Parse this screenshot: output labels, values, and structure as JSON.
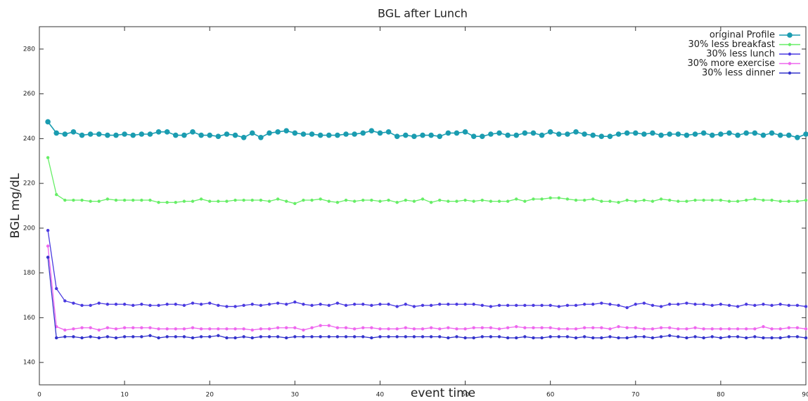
{
  "chart_data": {
    "type": "line",
    "title": "BGL after Lunch",
    "x_label": "event time",
    "y_label": "BGL mg/dL",
    "x": [
      1,
      2,
      3,
      4,
      5,
      6,
      7,
      8,
      9,
      10,
      11,
      12,
      13,
      14,
      15,
      16,
      17,
      18,
      19,
      20,
      21,
      22,
      23,
      24,
      25,
      26,
      27,
      28,
      29,
      30,
      31,
      32,
      33,
      34,
      35,
      36,
      37,
      38,
      39,
      40,
      41,
      42,
      43,
      44,
      45,
      46,
      47,
      48,
      49,
      50,
      51,
      52,
      53,
      54,
      55,
      56,
      57,
      58,
      59,
      60,
      61,
      62,
      63,
      64,
      65,
      66,
      67,
      68,
      69,
      70,
      71,
      72,
      73,
      74,
      75,
      76,
      77,
      78,
      79,
      80,
      81,
      82,
      83,
      84,
      85,
      86,
      87,
      88,
      89,
      90
    ],
    "series": [
      {
        "name": "original Profile",
        "color": "#1a9cb0",
        "values": [
          247.5,
          242.5,
          242,
          243,
          241.5,
          242,
          242,
          241.5,
          241.5,
          242,
          241.5,
          242,
          242,
          243,
          243,
          241.5,
          241.5,
          243,
          241.5,
          241.5,
          241,
          242,
          241.5,
          240.5,
          242.5,
          240.5,
          242.5,
          243,
          243.5,
          242.5,
          242,
          242,
          241.5,
          241.5,
          241.5,
          242,
          242,
          242.5,
          243.5,
          242.5,
          243,
          241,
          241.5,
          241,
          241.5,
          241.5,
          241,
          242.5,
          242.5,
          243,
          241,
          241,
          242,
          242.5,
          241.5,
          241.5,
          242.5,
          242.5,
          241.5,
          243,
          242,
          242,
          243,
          242,
          241.5,
          241,
          241,
          242,
          242.5,
          242.5,
          242,
          242.5,
          241.5,
          242,
          242,
          241.5,
          242,
          242.5,
          241.5,
          242,
          242.5,
          241.5,
          242.5,
          242.5,
          241.5,
          242.5,
          241.5,
          241.5,
          240.5,
          242
        ]
      },
      {
        "name": "30% less breakfast",
        "color": "#66ee66",
        "values": [
          231.5,
          215,
          212.5,
          212.5,
          212.5,
          212,
          212,
          213,
          212.5,
          212.5,
          212.5,
          212.5,
          212.5,
          211.5,
          211.5,
          211.5,
          212,
          212,
          213,
          212,
          212,
          212,
          212.5,
          212.5,
          212.5,
          212.5,
          212,
          213,
          212,
          211,
          212.5,
          212.5,
          213,
          212,
          211.5,
          212.5,
          212,
          212.5,
          212.5,
          212,
          212.5,
          211.5,
          212.5,
          212,
          213,
          211.5,
          212.5,
          212,
          212,
          212.5,
          212,
          212.5,
          212,
          212,
          212,
          213,
          212,
          213,
          213,
          213.5,
          213.5,
          213,
          212.5,
          212.5,
          213,
          212,
          212,
          211.5,
          212.5,
          212,
          212.5,
          212,
          213,
          212.5,
          212,
          212,
          212.5,
          212.5,
          212.5,
          212.5,
          212,
          212,
          212.5,
          213,
          212.5,
          212.5,
          212,
          212,
          212,
          212.5
        ]
      },
      {
        "name": "30% less lunch",
        "color": "#4a3ae0",
        "values": [
          199,
          173,
          167.5,
          166.5,
          165.5,
          165.5,
          166.5,
          166,
          166,
          166,
          165.5,
          166,
          165.5,
          165.5,
          166,
          166,
          165.5,
          166.5,
          166,
          166.5,
          165.5,
          165,
          165,
          165.5,
          166,
          165.5,
          166,
          166.5,
          166,
          167,
          166,
          165.5,
          166,
          165.5,
          166.5,
          165.5,
          166,
          166,
          165.5,
          166,
          166,
          165,
          166,
          165,
          165.5,
          165.5,
          166,
          166,
          166,
          166,
          166,
          165.5,
          165,
          165.5,
          165.5,
          165.5,
          165.5,
          165.5,
          165.5,
          165.5,
          165,
          165.5,
          165.5,
          166,
          166,
          166.5,
          166,
          165.5,
          164.5,
          166,
          166.5,
          165.5,
          165,
          166,
          166,
          166.5,
          166,
          166,
          165.5,
          166,
          165.5,
          165,
          166,
          165.5,
          166,
          165.5,
          166,
          165.5,
          165.5,
          165
        ]
      },
      {
        "name": "30% more exercise",
        "color": "#ee66ee",
        "values": [
          192,
          156,
          154.5,
          155,
          155.5,
          155.5,
          154.5,
          155.5,
          155,
          155.5,
          155.5,
          155.5,
          155.5,
          155,
          155,
          155,
          155,
          155.5,
          155,
          155,
          155,
          155,
          155,
          155,
          154.5,
          155,
          155,
          155.5,
          155.5,
          155.5,
          154.5,
          155.5,
          156.5,
          156.5,
          155.5,
          155.5,
          155,
          155.5,
          155.5,
          155,
          155,
          155,
          155.5,
          155,
          155,
          155.5,
          155,
          155.5,
          155,
          155,
          155.5,
          155.5,
          155.5,
          155,
          155.5,
          156,
          155.5,
          155.5,
          155.5,
          155.5,
          155,
          155,
          155,
          155.5,
          155.5,
          155.5,
          155,
          156,
          155.5,
          155.5,
          155,
          155,
          155.5,
          155.5,
          155,
          155,
          155.5,
          155,
          155,
          155,
          155,
          155,
          155,
          155,
          156,
          155,
          155,
          155.5,
          155.5,
          155
        ]
      },
      {
        "name": "30% less dinner",
        "color": "#3333cc",
        "values": [
          187,
          151,
          151.5,
          151.5,
          151,
          151.5,
          151,
          151.5,
          151,
          151.5,
          151.5,
          151.5,
          152,
          151,
          151.5,
          151.5,
          151.5,
          151,
          151.5,
          151.5,
          152,
          151,
          151,
          151.5,
          151,
          151.5,
          151.5,
          151.5,
          151,
          151.5,
          151.5,
          151.5,
          151.5,
          151.5,
          151.5,
          151.5,
          151.5,
          151.5,
          151,
          151.5,
          151.5,
          151.5,
          151.5,
          151.5,
          151.5,
          151.5,
          151.5,
          151,
          151.5,
          151,
          151,
          151.5,
          151.5,
          151.5,
          151,
          151,
          151.5,
          151,
          151,
          151.5,
          151.5,
          151.5,
          151,
          151.5,
          151,
          151,
          151.5,
          151,
          151,
          151.5,
          151.5,
          151,
          151.5,
          152,
          151.5,
          151,
          151.5,
          151,
          151.5,
          151,
          151.5,
          151.5,
          151,
          151.5,
          151,
          151,
          151,
          151.5,
          151.5,
          151
        ]
      }
    ],
    "xlim": [
      0,
      90
    ],
    "ylim": [
      130,
      290
    ],
    "xticks": [
      0,
      10,
      20,
      30,
      40,
      50,
      60,
      70,
      80,
      90
    ],
    "yticks": [
      140,
      160,
      180,
      200,
      220,
      240,
      260,
      280
    ],
    "legend": "top-right"
  }
}
